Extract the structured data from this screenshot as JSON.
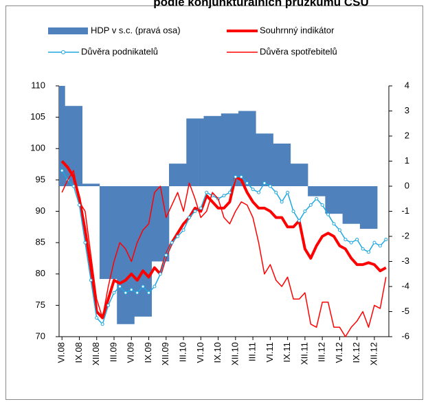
{
  "chart_data": {
    "type": "combo",
    "title": "podle konjunkturálních průzkumů ČSÚ",
    "categories": [
      "VI.08",
      null,
      null,
      "IX.08",
      null,
      null,
      "XII.08",
      null,
      null,
      "III.09",
      null,
      null,
      "VI.09",
      null,
      null,
      "IX.09",
      null,
      null,
      "XII.09",
      null,
      null,
      "III.10",
      null,
      null,
      "VI.10",
      null,
      null,
      "IX.10",
      null,
      null,
      "XII.10",
      null,
      null,
      "III.11",
      null,
      null,
      "VI.11",
      null,
      null,
      "IX.11",
      null,
      null,
      "XII.11",
      null,
      null,
      "III.12",
      null,
      null,
      "VI.12",
      null,
      null,
      "IX.12",
      null,
      null,
      "XII.12",
      null,
      null
    ],
    "ylim": [
      70,
      110
    ],
    "yticks": [
      70,
      75,
      80,
      85,
      90,
      95,
      100,
      105,
      110
    ],
    "y2lim": [
      -6,
      4
    ],
    "y2ticks": [
      -6,
      -5,
      -4,
      -3,
      -2,
      -1,
      0,
      1,
      2,
      3,
      4
    ],
    "series": [
      {
        "name": "HDP v s.c. (pravá osa)",
        "type": "bar",
        "axis": "y2",
        "color": "#4f81bd",
        "values": [
          4.0,
          3.2,
          3.2,
          3.2,
          0.1,
          0.1,
          0.1,
          -3.7,
          -3.7,
          -3.7,
          -5.5,
          -5.5,
          -5.5,
          -5.2,
          -5.2,
          -5.2,
          -3.0,
          -3.0,
          -3.0,
          0.9,
          0.9,
          0.9,
          2.7,
          2.7,
          2.7,
          2.8,
          2.8,
          2.8,
          2.9,
          2.9,
          2.9,
          3.0,
          3.0,
          3.0,
          2.1,
          2.1,
          2.1,
          1.7,
          1.7,
          1.7,
          0.9,
          0.9,
          0.9,
          -0.4,
          -0.4,
          -0.4,
          -1.1,
          -1.1,
          -1.1,
          -1.5,
          -1.5,
          -1.5,
          -1.7,
          -1.7,
          -1.7,
          null,
          null
        ]
      },
      {
        "name": "Souhrnný indikátor",
        "type": "line",
        "color": "#ff0000",
        "values": [
          98,
          97,
          95.5,
          92,
          87,
          81,
          74,
          73,
          76,
          79,
          78.5,
          79,
          80,
          79,
          80.5,
          79.5,
          81,
          80,
          83,
          85,
          86.5,
          88,
          89,
          90.5,
          90,
          92.5,
          91.5,
          90.5,
          90.5,
          91.5,
          95.5,
          95,
          93,
          91.5,
          90.5,
          90.5,
          90,
          89,
          89,
          87.5,
          87.5,
          88.5,
          84,
          82.5,
          84.5,
          86,
          86.5,
          86,
          84.5,
          84,
          82.5,
          81.5,
          81.5,
          81.8,
          81.5,
          80.5,
          81
        ]
      },
      {
        "name": "Důvěra podnikatelů",
        "type": "line",
        "color": "#1ea7e0",
        "markers": true,
        "values": [
          96.5,
          95,
          94,
          91,
          85,
          79,
          73,
          72,
          75,
          77,
          78,
          77,
          77.5,
          77,
          78,
          77,
          78,
          80,
          83,
          85,
          86,
          87,
          89,
          90,
          90.5,
          93,
          92.5,
          92,
          92.5,
          93,
          95.5,
          95.5,
          94.5,
          93.5,
          93,
          94.5,
          94,
          93,
          91.5,
          93,
          90,
          88.5,
          90,
          91,
          92,
          91,
          89.5,
          88,
          87,
          85.5,
          85,
          85.5,
          84,
          83.5,
          85,
          84.5,
          85.5
        ]
      },
      {
        "name": "Důvěra spotřebitelů",
        "type": "line",
        "color": "#ff0000",
        "values": [
          93,
          95,
          96.5,
          91.5,
          90,
          83,
          76,
          73,
          78,
          82,
          85,
          84,
          82,
          85,
          87,
          88,
          93,
          94,
          89,
          91,
          93,
          90,
          94.5,
          92,
          89,
          90,
          93,
          92,
          89,
          88,
          90,
          91.5,
          91,
          89,
          85,
          80,
          81.5,
          79,
          78,
          79.5,
          76,
          76,
          77,
          72,
          71.5,
          75.5,
          75.5,
          71.5,
          71.5,
          70,
          71.5,
          72.5,
          74,
          71.5,
          75,
          74.5,
          79.5
        ]
      }
    ]
  }
}
